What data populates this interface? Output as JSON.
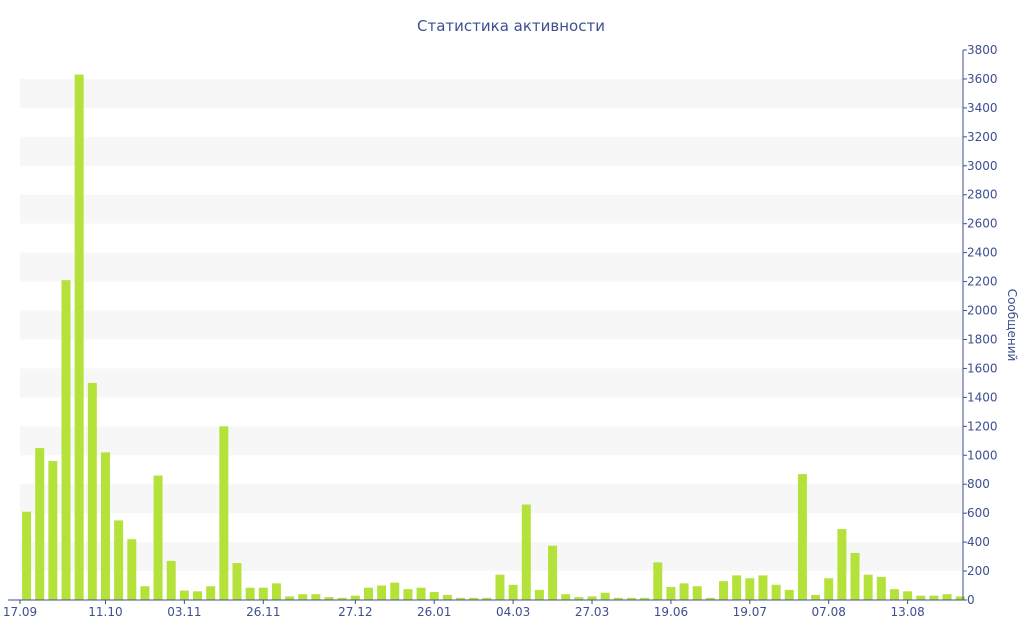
{
  "chart_data": {
    "type": "bar",
    "title": "Статистика активности",
    "ylabel": "Сообщений",
    "ylim": [
      0,
      3800
    ],
    "y_ticks": [
      0,
      200,
      400,
      600,
      800,
      1000,
      1200,
      1400,
      1600,
      1800,
      2000,
      2200,
      2400,
      2600,
      2800,
      3000,
      3200,
      3400,
      3600,
      3800
    ],
    "y_axis_side": "right",
    "x_tick_labels": [
      {
        "label": "17.09",
        "index": 0
      },
      {
        "label": "11.10",
        "index": 6
      },
      {
        "label": "03.11",
        "index": 12
      },
      {
        "label": "26.11",
        "index": 18
      },
      {
        "label": "27.12",
        "index": 25
      },
      {
        "label": "26.01",
        "index": 31
      },
      {
        "label": "04.03",
        "index": 37
      },
      {
        "label": "27.03",
        "index": 43
      },
      {
        "label": "19.06",
        "index": 49
      },
      {
        "label": "19.07",
        "index": 55
      },
      {
        "label": "07.08",
        "index": 61
      },
      {
        "label": "13.08",
        "index": 67
      }
    ],
    "bar_color": "#b5e23a",
    "grid": "alternating horizontal bands",
    "values": [
      610,
      1050,
      960,
      2210,
      3630,
      1500,
      1020,
      550,
      420,
      95,
      860,
      270,
      65,
      60,
      95,
      1200,
      255,
      85,
      85,
      115,
      25,
      40,
      40,
      20,
      15,
      30,
      85,
      100,
      120,
      75,
      85,
      55,
      35,
      15,
      15,
      15,
      175,
      105,
      660,
      70,
      375,
      40,
      20,
      25,
      50,
      15,
      15,
      15,
      260,
      90,
      115,
      95,
      15,
      130,
      170,
      150,
      170,
      105,
      70,
      870,
      35,
      150,
      490,
      325,
      175,
      160,
      75,
      60,
      30,
      30,
      40,
      25
    ]
  }
}
